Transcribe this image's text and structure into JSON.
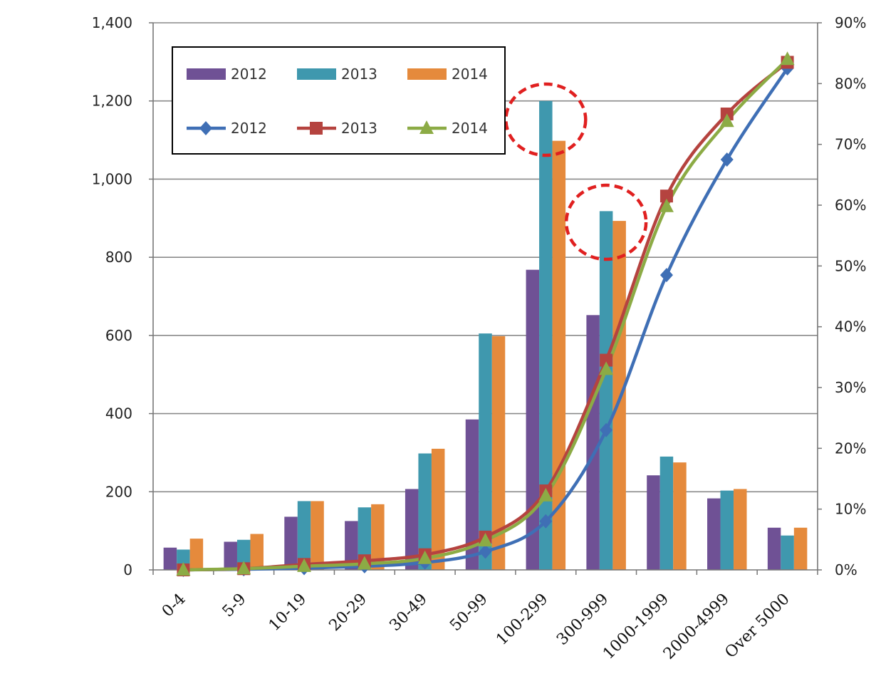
{
  "chart_data": {
    "type": "bar",
    "categories": [
      "0-4",
      "5-9",
      "10-19",
      "20-29",
      "30-49",
      "50-99",
      "100-299",
      "300-999",
      "1000-1999",
      "2000-4999",
      "Over 5000"
    ],
    "bar_series": [
      {
        "name": "2012",
        "color": "#6f5195",
        "values": [
          57,
          72,
          136,
          125,
          207,
          385,
          768,
          652,
          242,
          183,
          108
        ]
      },
      {
        "name": "2013",
        "color": "#3f98ae",
        "values": [
          52,
          77,
          176,
          160,
          298,
          605,
          1200,
          918,
          290,
          203,
          88
        ]
      },
      {
        "name": "2014",
        "color": "#e58a3c",
        "values": [
          80,
          92,
          176,
          168,
          310,
          598,
          1098,
          893,
          275,
          207,
          108
        ]
      }
    ],
    "line_series": [
      {
        "name": "2012",
        "color": "#3f6fb5",
        "marker": "diamond",
        "values": [
          0,
          0.1,
          0.3,
          0.6,
          1.2,
          3.0,
          8.0,
          23.0,
          48.5,
          67.5,
          82.5
        ]
      },
      {
        "name": "2013",
        "color": "#b5433f",
        "marker": "square",
        "values": [
          0,
          0.2,
          0.9,
          1.5,
          2.5,
          5.4,
          13.0,
          34.5,
          61.5,
          75.0,
          83.5
        ]
      },
      {
        "name": "2014",
        "color": "#8cab45",
        "marker": "triangle",
        "values": [
          0,
          0.2,
          0.6,
          1.0,
          1.9,
          4.8,
          12.2,
          33.0,
          59.8,
          73.8,
          84.0
        ]
      }
    ],
    "y_left": {
      "min": 0,
      "max": 1400,
      "ticks": [
        "0",
        "200",
        "400",
        "600",
        "800",
        "1,000",
        "1,200",
        "1,400"
      ]
    },
    "y_right": {
      "min": 0,
      "max": 90,
      "ticks": [
        "0%",
        "10%",
        "20%",
        "30%",
        "40%",
        "50%",
        "60%",
        "70%",
        "80%",
        "90%"
      ]
    },
    "grid": true,
    "legend_position": "top-left",
    "annotations": [
      {
        "shape": "dashed-ellipse",
        "color": "#e02020",
        "category": "100-299"
      },
      {
        "shape": "dashed-ellipse",
        "color": "#e02020",
        "category": "300-999"
      }
    ]
  }
}
